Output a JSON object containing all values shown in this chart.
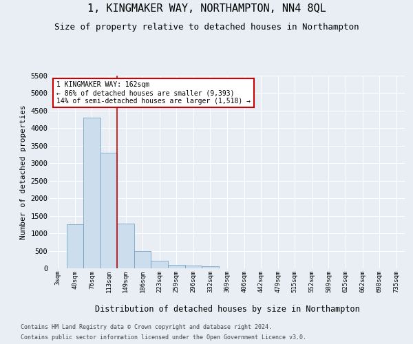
{
  "title": "1, KINGMAKER WAY, NORTHAMPTON, NN4 8QL",
  "subtitle": "Size of property relative to detached houses in Northampton",
  "xlabel": "Distribution of detached houses by size in Northampton",
  "ylabel": "Number of detached properties",
  "footer_line1": "Contains HM Land Registry data © Crown copyright and database right 2024.",
  "footer_line2": "Contains public sector information licensed under the Open Government Licence v3.0.",
  "categories": [
    "3sqm",
    "40sqm",
    "76sqm",
    "113sqm",
    "149sqm",
    "186sqm",
    "223sqm",
    "259sqm",
    "296sqm",
    "332sqm",
    "369sqm",
    "406sqm",
    "442sqm",
    "479sqm",
    "515sqm",
    "552sqm",
    "589sqm",
    "625sqm",
    "662sqm",
    "698sqm",
    "735sqm"
  ],
  "values": [
    0,
    1250,
    4300,
    3300,
    1270,
    490,
    220,
    100,
    70,
    50,
    0,
    0,
    0,
    0,
    0,
    0,
    0,
    0,
    0,
    0,
    0
  ],
  "bar_color": "#ccdded",
  "bar_edge_color": "#6699bb",
  "vline_x_index": 4,
  "vline_color": "#cc0000",
  "annotation_text": "1 KINGMAKER WAY: 162sqm\n← 86% of detached houses are smaller (9,393)\n14% of semi-detached houses are larger (1,518) →",
  "annotation_box_color": "#cc0000",
  "annotation_box_facecolor": "white",
  "ylim": [
    0,
    5500
  ],
  "yticks": [
    0,
    500,
    1000,
    1500,
    2000,
    2500,
    3000,
    3500,
    4000,
    4500,
    5000,
    5500
  ],
  "background_color": "#e8eef4",
  "plot_background": "#e8eef4",
  "title_fontsize": 11,
  "subtitle_fontsize": 9,
  "grid_color": "#ffffff",
  "figsize": [
    6.0,
    5.0
  ],
  "dpi": 100
}
